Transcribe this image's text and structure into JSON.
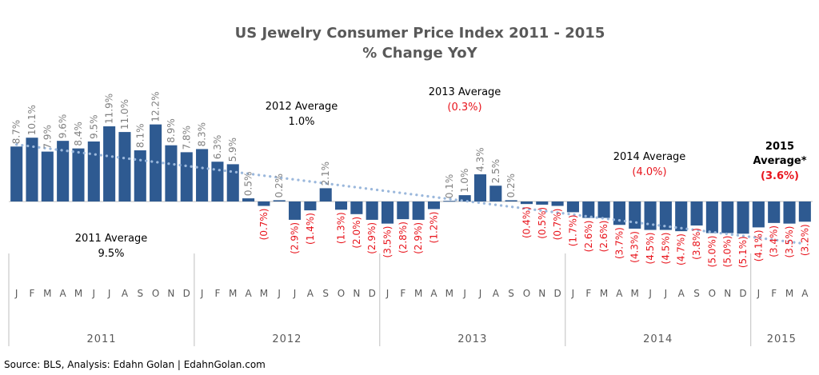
{
  "title": "US Jewelry Consumer Price Index 2011 - 2015",
  "subtitle": "% Change YoY",
  "source": "Source: BLS, Analysis: Edahn Golan | EdahnGolan.com",
  "colors": {
    "bar": "#2e5a91",
    "trend": "#9bb8dc",
    "positive_label": "#808080",
    "negative_label": "#e8141c",
    "axis": "#bfbfbf"
  },
  "chart_data": {
    "type": "bar",
    "title": "US Jewelry Consumer Price Index 2011 - 2015",
    "subtitle": "% Change YoY",
    "xlabel": "",
    "ylabel": "",
    "unit": "%",
    "grid": false,
    "legend": "none",
    "ylim": [
      -6,
      13
    ],
    "trendline": "dotted linear trend",
    "categories": [
      "J",
      "F",
      "M",
      "A",
      "M",
      "J",
      "J",
      "A",
      "S",
      "O",
      "N",
      "D",
      "J",
      "F",
      "M",
      "A",
      "M",
      "J",
      "J",
      "A",
      "S",
      "O",
      "N",
      "D",
      "J",
      "F",
      "M",
      "A",
      "M",
      "J",
      "J",
      "A",
      "S",
      "O",
      "N",
      "D",
      "J",
      "F",
      "M",
      "A",
      "M",
      "J",
      "J",
      "A",
      "S",
      "O",
      "N",
      "D",
      "J",
      "F",
      "M",
      "A"
    ],
    "years": [
      {
        "label": "2011",
        "months": 12
      },
      {
        "label": "2012",
        "months": 12
      },
      {
        "label": "2013",
        "months": 12
      },
      {
        "label": "2014",
        "months": 12
      },
      {
        "label": "2015",
        "months": 4
      }
    ],
    "values": [
      8.7,
      10.1,
      7.9,
      9.6,
      8.4,
      9.5,
      11.9,
      11.0,
      8.1,
      12.2,
      8.9,
      7.8,
      8.3,
      6.3,
      5.9,
      0.5,
      -0.7,
      0.2,
      -2.9,
      -1.4,
      2.1,
      -1.3,
      -2.0,
      -2.9,
      -3.5,
      -2.8,
      -2.9,
      -1.2,
      0.1,
      1.0,
      4.3,
      2.5,
      0.2,
      -0.4,
      -0.5,
      -0.7,
      -1.7,
      -2.6,
      -2.6,
      -3.7,
      -4.3,
      -4.5,
      -4.5,
      -4.7,
      -3.8,
      -5.0,
      -5.0,
      -5.1,
      -4.1,
      -3.4,
      -3.5,
      -3.2
    ],
    "labels": [
      "8.7%",
      "10.1%",
      "7.9%",
      "9.6%",
      "8.4%",
      "9.5%",
      "11.9%",
      "11.0%",
      "8.1%",
      "12.2%",
      "8.9%",
      "7.8%",
      "8.3%",
      "6.3%",
      "5.9%",
      "0.5%",
      "(0.7%)",
      "0.2%",
      "(2.9%)",
      "(1.4%)",
      "2.1%",
      "(1.3%)",
      "(2.0%)",
      "(2.9%)",
      "(3.5%)",
      "(2.8%)",
      "(2.9%)",
      "(1.2%)",
      "0.1%",
      "1.0%",
      "4.3%",
      "2.5%",
      "0.2%",
      "(0.4%)",
      "(0.5%)",
      "(0.7%)",
      "(1.7%)",
      "(2.6%)",
      "(2.6%)",
      "(3.7%)",
      "(4.3%)",
      "(4.5%)",
      "(4.5%)",
      "(4.7%)",
      "(3.8%)",
      "(5.0%)",
      "(5.0%)",
      "(5.1%)",
      "(4.1%)",
      "(3.4%)",
      "(3.5%)",
      "(3.2%)"
    ],
    "annotations": [
      {
        "title": "2011 Average",
        "value": "9.5%",
        "negative": false,
        "bold": false
      },
      {
        "title": "2012 Average",
        "value": "1.0%",
        "negative": false,
        "bold": false
      },
      {
        "title": "2013 Average",
        "value": "(0.3%)",
        "negative": true,
        "bold": false
      },
      {
        "title": "2014 Average",
        "value": "(4.0%)",
        "negative": true,
        "bold": false
      },
      {
        "title": "2015",
        "title2": "Average*",
        "value": "(3.6%)",
        "negative": true,
        "bold": true
      }
    ]
  }
}
